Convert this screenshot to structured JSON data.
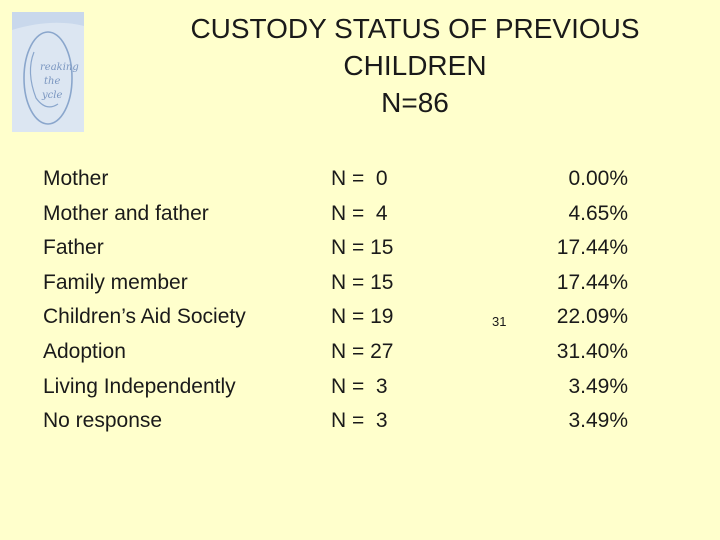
{
  "title_lines": [
    "CUSTODY STATUS OF PREVIOUS",
    "CHILDREN",
    "N=86"
  ],
  "logo_text": "Breaking the Cycle",
  "rows": [
    {
      "label": "Mother",
      "count": "N =  0",
      "percent": "0.00%"
    },
    {
      "label": "Mother and father",
      "count": "N =  4",
      "percent": "4.65%"
    },
    {
      "label": "Father",
      "count": "N = 15",
      "percent": "17.44%"
    },
    {
      "label": "Family member",
      "count": "N = 15",
      "percent": "17.44%"
    },
    {
      "label": "Children’s Aid Society",
      "count": "N = 19",
      "percent": "22.09%"
    },
    {
      "label": "Adoption",
      "count": "N = 27",
      "percent": "31.40%"
    },
    {
      "label": "Living Independently",
      "count": "N =  3",
      "percent": "3.49%"
    },
    {
      "label": "No response",
      "count": "N =  3",
      "percent": "3.49%"
    }
  ],
  "page_number": "31",
  "colors": {
    "background": "#FFFFCC",
    "logo_fill": "#DCE6F2",
    "logo_stroke": "#8AA6CC"
  }
}
